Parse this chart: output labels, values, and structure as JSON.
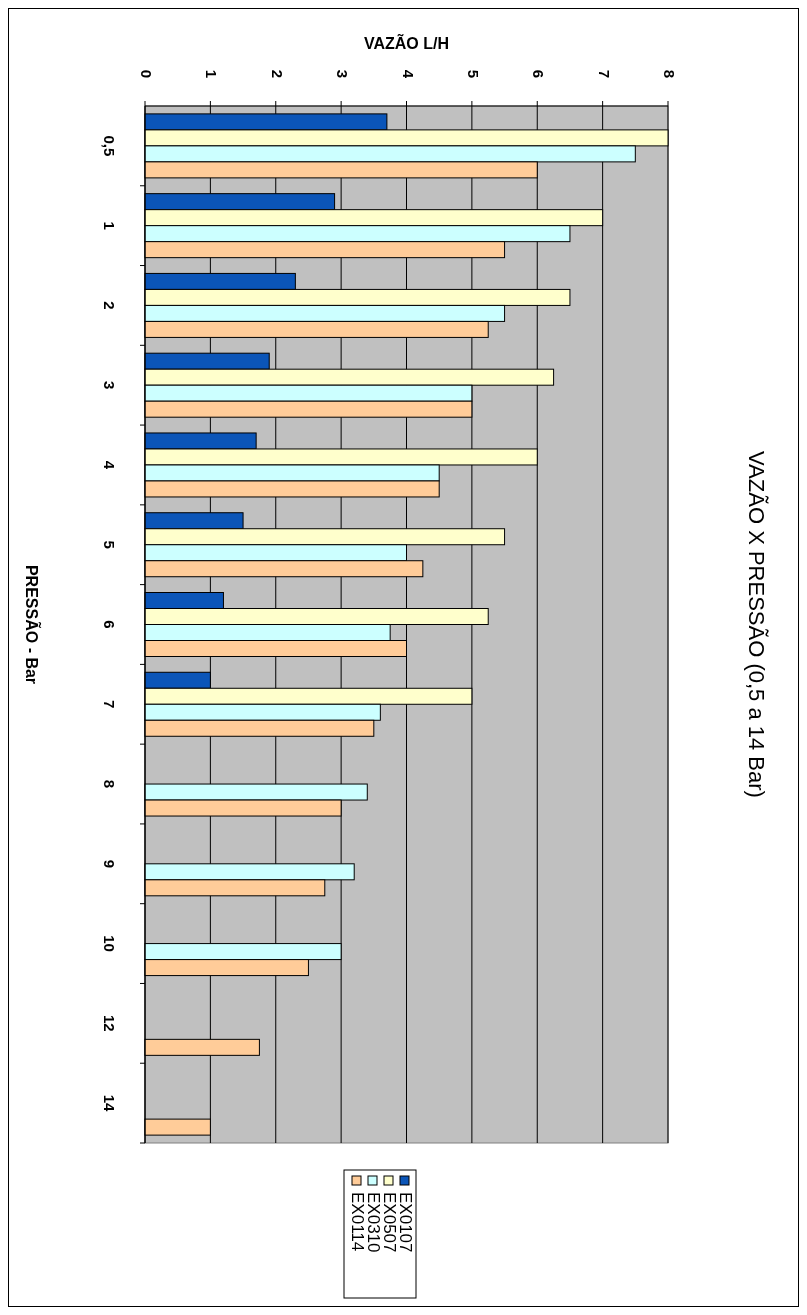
{
  "chart_data": {
    "type": "bar",
    "orientation": "horizontal",
    "title": "VAZÃO X PRESSÃO (0,5 a 14 Bar)",
    "xlabel": "VAZÃO L/H",
    "ylabel": "PRESSÃO - Bar",
    "categories": [
      "0,5",
      "1",
      "2",
      "3",
      "4",
      "5",
      "6",
      "7",
      "8",
      "9",
      "10",
      "12",
      "14"
    ],
    "series": [
      {
        "name": "EX0107",
        "color": "#0b55b8",
        "values": [
          3.7,
          2.9,
          2.3,
          1.9,
          1.7,
          1.5,
          1.2,
          1.0,
          null,
          null,
          null,
          null,
          null
        ]
      },
      {
        "name": "EX0507",
        "color": "#ffffcc",
        "values": [
          8,
          7,
          6.5,
          6.25,
          6,
          5.5,
          5.25,
          5,
          null,
          null,
          null,
          null,
          null
        ]
      },
      {
        "name": "EX0310",
        "color": "#ccffff",
        "values": [
          7.5,
          6.5,
          5.5,
          5,
          4.5,
          4,
          3.75,
          3.6,
          3.4,
          3.2,
          3,
          null,
          null
        ]
      },
      {
        "name": "EX0114",
        "color": "#ffcc99",
        "values": [
          6,
          5.5,
          5.25,
          5,
          4.5,
          4.25,
          4,
          3.5,
          3,
          2.75,
          2.5,
          1.75,
          1
        ]
      }
    ],
    "xlim": [
      0,
      8
    ],
    "xticks": [
      0,
      1,
      2,
      3,
      4,
      5,
      6,
      7,
      8
    ],
    "grid": "x",
    "legend": "bottom"
  }
}
